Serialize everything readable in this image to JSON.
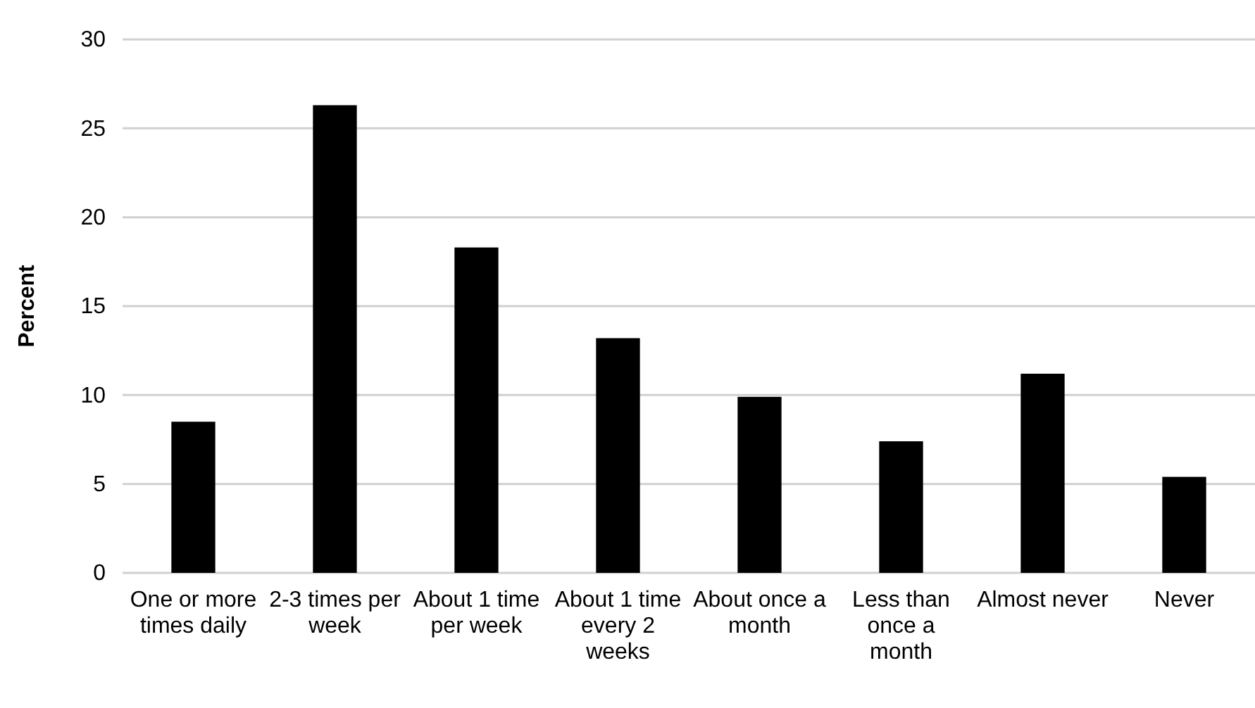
{
  "chart_data": {
    "type": "bar",
    "ylabel": "Percent",
    "categories": [
      "One or more times daily",
      "2-3 times per week",
      "About 1 time per week",
      "About 1 time every 2 weeks",
      "About once a month",
      "Less than once a month",
      "Almost never",
      "Never"
    ],
    "values": [
      8.5,
      26.3,
      18.3,
      13.2,
      9.9,
      7.4,
      11.2,
      5.4
    ],
    "color": "#000000",
    "ylim": [
      0,
      30
    ],
    "yticks": [
      0,
      5,
      10,
      15,
      20,
      25,
      30
    ],
    "grid": "y"
  }
}
